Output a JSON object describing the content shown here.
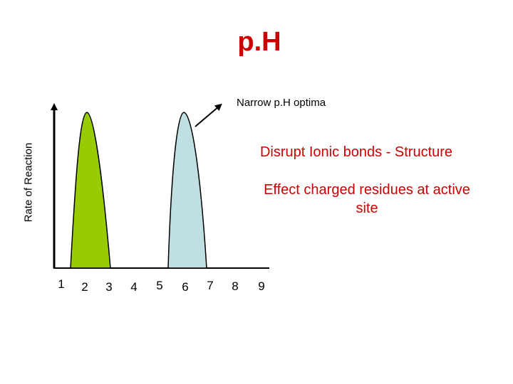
{
  "title": "p.H",
  "annotation": "Narrow p.H optima",
  "notes": {
    "disrupt": "Disrupt Ionic bonds - Structure",
    "effect_line1": "Effect charged residues at active",
    "effect_line2": "site"
  },
  "axis": {
    "ylabel": "Rate of Reaction"
  },
  "ticks": [
    "1",
    "2",
    "3",
    "4",
    "5",
    "6",
    "7",
    "8",
    "9"
  ],
  "colors": {
    "title": "#cc0000",
    "peak1": "#99cc00",
    "peak2": "#bfdfe2",
    "notes": "#cc0000"
  }
}
